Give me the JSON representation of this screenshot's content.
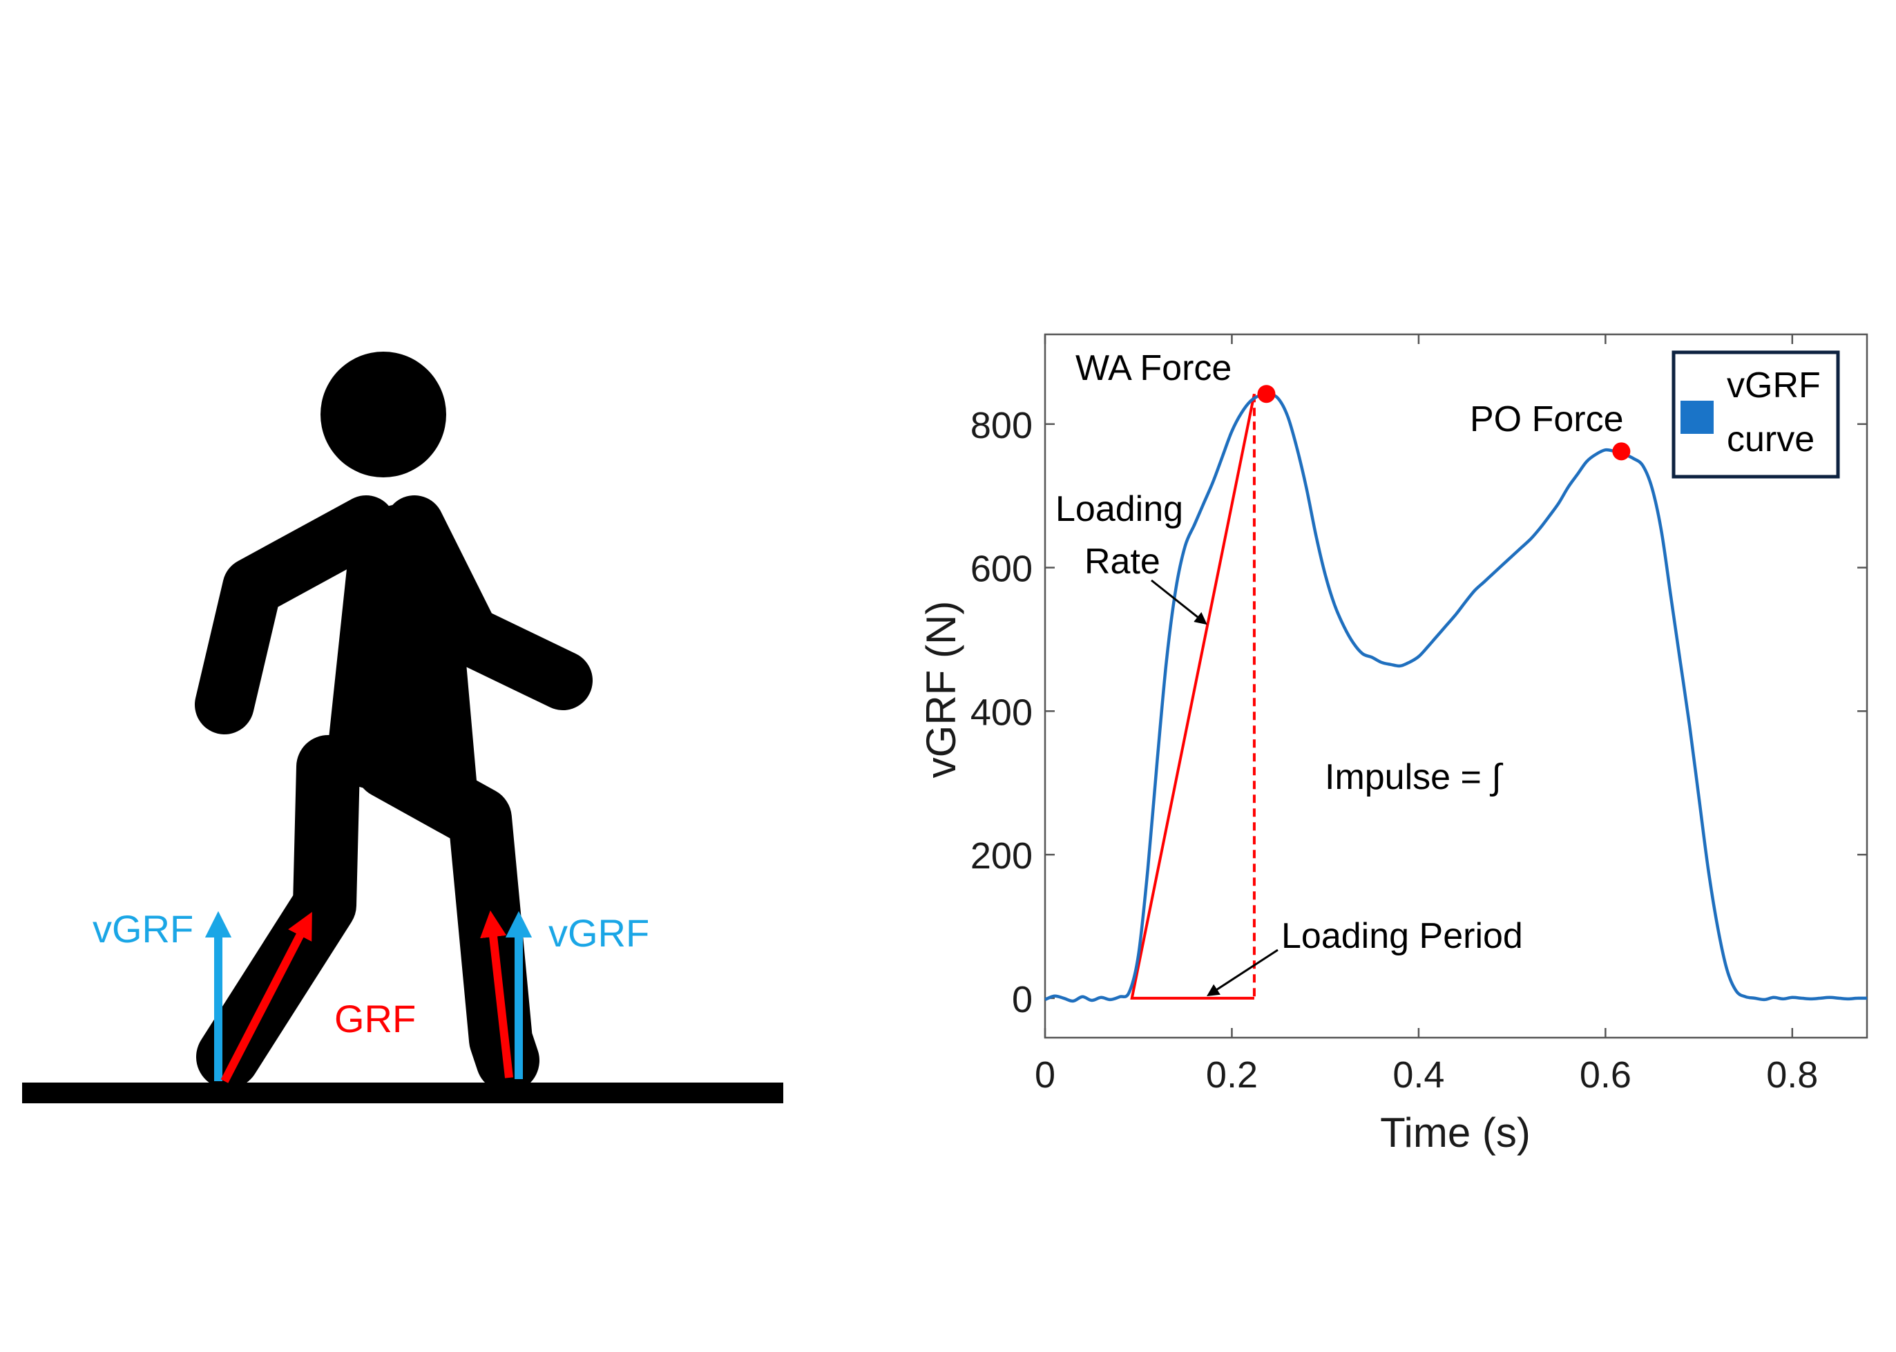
{
  "figure": {
    "walker_labels": {
      "vgrf_left": "vGRF",
      "vgrf_right": "vGRF",
      "grf": "GRF"
    },
    "colors": {
      "vgrf_arrow": "#1aa6e6",
      "grf_arrow": "#ff0000",
      "figure": "#000000"
    }
  },
  "chart_data": {
    "type": "line",
    "title": "",
    "xlabel": "Time (s)",
    "ylabel": "vGRF (N)",
    "xlim": [
      0,
      0.88
    ],
    "ylim": [
      -55,
      925
    ],
    "xticks": [
      0,
      0.2,
      0.4,
      0.6,
      0.8
    ],
    "yticks": [
      0,
      200,
      400,
      600,
      800
    ],
    "xtick_labels": [
      "0",
      "0.2",
      "0.4",
      "0.6",
      "0.8"
    ],
    "ytick_labels": [
      "0",
      "200",
      "400",
      "600",
      "800"
    ],
    "legend": {
      "position": "top-right",
      "entries": [
        "vGRF curve"
      ],
      "lines": [
        "vGRF",
        "curve"
      ]
    },
    "series": [
      {
        "name": "vGRF curve",
        "color": "#1f6fbe",
        "x": [
          0,
          0.01,
          0.02,
          0.03,
          0.04,
          0.05,
          0.06,
          0.07,
          0.08,
          0.09,
          0.1,
          0.11,
          0.12,
          0.13,
          0.14,
          0.15,
          0.16,
          0.17,
          0.18,
          0.19,
          0.2,
          0.21,
          0.22,
          0.23,
          0.24,
          0.25,
          0.26,
          0.27,
          0.28,
          0.29,
          0.3,
          0.31,
          0.32,
          0.33,
          0.34,
          0.35,
          0.36,
          0.37,
          0.38,
          0.39,
          0.4,
          0.41,
          0.42,
          0.43,
          0.44,
          0.45,
          0.46,
          0.47,
          0.48,
          0.49,
          0.5,
          0.51,
          0.52,
          0.53,
          0.54,
          0.55,
          0.56,
          0.57,
          0.58,
          0.59,
          0.6,
          0.61,
          0.62,
          0.63,
          0.64,
          0.65,
          0.66,
          0.67,
          0.68,
          0.69,
          0.7,
          0.71,
          0.72,
          0.73,
          0.74,
          0.75,
          0.76,
          0.77,
          0.78,
          0.79,
          0.8,
          0.81,
          0.82,
          0.83,
          0.84,
          0.85,
          0.86,
          0.87,
          0.88
        ],
        "y": [
          -2,
          3,
          0,
          -4,
          2,
          -3,
          1,
          -2,
          2,
          8,
          60,
          180,
          330,
          470,
          570,
          630,
          660,
          690,
          720,
          755,
          790,
          815,
          832,
          840,
          842,
          835,
          810,
          765,
          710,
          645,
          590,
          548,
          518,
          495,
          480,
          475,
          468,
          465,
          463,
          468,
          476,
          490,
          505,
          520,
          535,
          552,
          568,
          580,
          592,
          604,
          616,
          628,
          640,
          655,
          672,
          690,
          712,
          730,
          748,
          758,
          764,
          762,
          758,
          752,
          742,
          710,
          650,
          560,
          470,
          380,
          280,
          180,
          100,
          40,
          10,
          2,
          0,
          -2,
          1,
          -1,
          1,
          0,
          -1,
          0,
          1,
          0,
          -1,
          0,
          0
        ]
      }
    ],
    "markers": [
      {
        "label": "WA Force",
        "x": 0.237,
        "y": 842,
        "color": "#ff0000"
      },
      {
        "label": "PO Force",
        "x": 0.617,
        "y": 762,
        "color": "#ff0000"
      }
    ],
    "loading_rate_triangle": {
      "x0": 0.093,
      "y0": 0,
      "x1": 0.224,
      "y1": 842,
      "color": "#ff0000"
    },
    "annotations": {
      "loading_rate_line1": "Loading",
      "loading_rate_line2": "Rate",
      "loading_period": "Loading Period",
      "impulse": "Impulse = ∫"
    }
  }
}
